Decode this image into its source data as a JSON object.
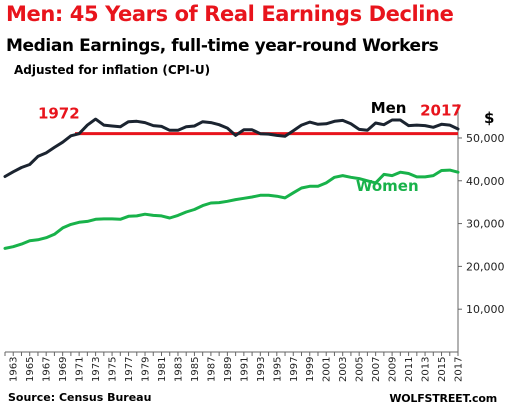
{
  "chart_data": {
    "type": "line",
    "title": "Men: 45 Years of Real Earnings Decline",
    "subtitle": "Median Earnings, full-time year-round Workers",
    "note": "Adjusted for inflation (CPI-U)",
    "y_unit": "$",
    "ylim": [
      0,
      57000
    ],
    "y_ticks": [
      "10,000",
      "20,000",
      "30,000",
      "40,000",
      "50,000"
    ],
    "x": [
      1962,
      1963,
      1964,
      1965,
      1966,
      1967,
      1968,
      1969,
      1970,
      1971,
      1972,
      1973,
      1974,
      1975,
      1976,
      1977,
      1978,
      1979,
      1980,
      1981,
      1982,
      1983,
      1984,
      1985,
      1986,
      1987,
      1988,
      1989,
      1990,
      1991,
      1992,
      1993,
      1994,
      1995,
      1996,
      1997,
      1998,
      1999,
      2000,
      2001,
      2002,
      2003,
      2004,
      2005,
      2006,
      2007,
      2008,
      2009,
      2010,
      2011,
      2012,
      2013,
      2014,
      2015,
      2016,
      2017
    ],
    "x_tick_labels": [
      "1963",
      "1965",
      "1967",
      "1969",
      "1971",
      "1973",
      "1975",
      "1977",
      "1979",
      "1981",
      "1983",
      "1985",
      "1987",
      "1989",
      "1991",
      "1993",
      "1995",
      "1997",
      "1999",
      "2001",
      "2003",
      "2005",
      "2007",
      "2009",
      "2011",
      "2013",
      "2015",
      "2017"
    ],
    "grid": false,
    "series": [
      {
        "name": "Men",
        "color": "#1b2430",
        "values": [
          41000,
          42100,
          43100,
          43800,
          45700,
          46500,
          47800,
          49000,
          50500,
          51000,
          53000,
          54400,
          53000,
          52800,
          52600,
          53800,
          53900,
          53600,
          52900,
          52700,
          51800,
          51800,
          52600,
          52800,
          53800,
          53600,
          53100,
          52300,
          50600,
          51900,
          51900,
          51000,
          50900,
          50600,
          50400,
          51700,
          53000,
          53700,
          53200,
          53300,
          53900,
          54100,
          53300,
          52000,
          51800,
          53500,
          53100,
          54200,
          54200,
          52900,
          53000,
          52900,
          52500,
          53200,
          53000,
          52100
        ]
      },
      {
        "name": "Women",
        "color": "#18b24a",
        "values": [
          24200,
          24600,
          25200,
          26000,
          26200,
          26700,
          27500,
          29000,
          29800,
          30300,
          30500,
          31000,
          31100,
          31100,
          31000,
          31700,
          31800,
          32200,
          31900,
          31800,
          31300,
          31900,
          32700,
          33300,
          34200,
          34800,
          34900,
          35200,
          35600,
          35900,
          36200,
          36600,
          36600,
          36400,
          36000,
          37200,
          38300,
          38700,
          38700,
          39500,
          40800,
          41200,
          40800,
          40500,
          40000,
          39500,
          41500,
          41200,
          42000,
          41700,
          40900,
          40900,
          41200,
          42400,
          42500,
          42000
        ]
      }
    ],
    "reference_line": {
      "value": 51000,
      "color": "#e8141c"
    },
    "annotations": {
      "start": {
        "text": "1972",
        "color": "#e8141c"
      },
      "end": {
        "text": "2017",
        "color": "#e8141c"
      }
    }
  },
  "footer": {
    "source": "Source: Census Bureau",
    "brand": "WOLFSTREET.com"
  }
}
